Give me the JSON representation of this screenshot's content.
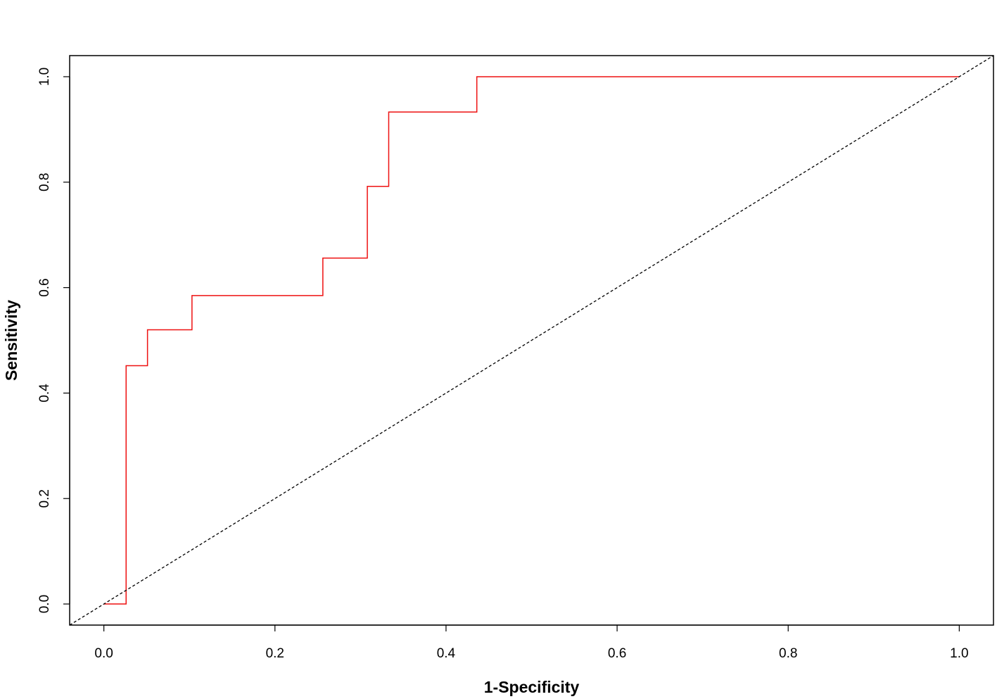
{
  "chart_data": {
    "type": "line",
    "title": "",
    "xlabel": "1-Specificity",
    "ylabel": "Sensitivity",
    "xlim": [
      -0.04,
      1.04
    ],
    "ylim": [
      -0.04,
      1.04
    ],
    "x_ticks": [
      0.0,
      0.2,
      0.4,
      0.6,
      0.8,
      1.0
    ],
    "x_tick_labels": [
      "0.0",
      "0.2",
      "0.4",
      "0.6",
      "0.8",
      "1.0"
    ],
    "y_ticks": [
      0.0,
      0.2,
      0.4,
      0.6,
      0.8,
      1.0
    ],
    "y_tick_labels": [
      "0.0",
      "0.2",
      "0.4",
      "0.6",
      "0.8",
      "1.0"
    ],
    "grid": false,
    "series": [
      {
        "color": "#ee1111",
        "style": "step",
        "x": [
          0.0,
          0.026,
          0.026,
          0.051,
          0.051,
          0.103,
          0.103,
          0.256,
          0.256,
          0.308,
          0.308,
          0.333,
          0.333,
          0.436,
          0.436,
          1.0
        ],
        "y": [
          0.0,
          0.0,
          0.452,
          0.452,
          0.52,
          0.52,
          0.585,
          0.585,
          0.656,
          0.656,
          0.792,
          0.792,
          0.933,
          0.933,
          1.0,
          1.0
        ]
      },
      {
        "color": "#000000",
        "style": "dashed",
        "x": [
          -0.04,
          1.04
        ],
        "y": [
          -0.04,
          1.04
        ]
      }
    ]
  }
}
